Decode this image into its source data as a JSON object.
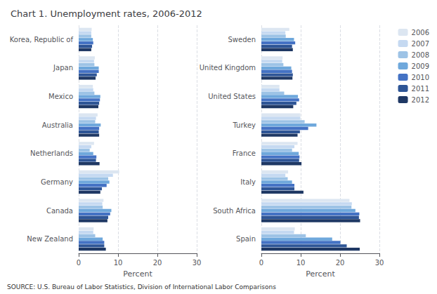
{
  "chart_data": [
    {
      "type": "bar",
      "orientation": "horizontal",
      "title": "Chart 1. Unemployment rates, 2006-2012",
      "annotations": [
        "SOURCE: U.S. Bureau of Labor Statistics, Division of International Labor Comparisons"
      ],
      "categories": [
        "Korea, Republic of",
        "Japan",
        "Mexico",
        "Australia",
        "Netherlands",
        "Germany",
        "Canada",
        "New Zealand"
      ],
      "series": [
        {
          "name": "2006",
          "color": "#dce6f1",
          "values": [
            3.3,
            4.1,
            3.6,
            4.8,
            3.9,
            10.3,
            6.3,
            3.8
          ]
        },
        {
          "name": "2007",
          "color": "#c5d9f1",
          "values": [
            3.2,
            3.9,
            3.7,
            4.4,
            3.2,
            8.7,
            6.0,
            3.7
          ]
        },
        {
          "name": "2008",
          "color": "#9dc3e6",
          "values": [
            3.2,
            4.0,
            4.0,
            4.2,
            2.8,
            7.5,
            6.1,
            4.2
          ]
        },
        {
          "name": "2009",
          "color": "#6fa8dc",
          "values": [
            3.6,
            5.1,
            5.5,
            5.6,
            3.7,
            7.8,
            8.3,
            6.1
          ]
        },
        {
          "name": "2010",
          "color": "#4472c4",
          "values": [
            3.7,
            5.1,
            5.4,
            5.2,
            4.5,
            7.1,
            8.0,
            6.5
          ]
        },
        {
          "name": "2011",
          "color": "#2e5596",
          "values": [
            3.4,
            4.6,
            5.2,
            5.1,
            4.4,
            5.9,
            7.5,
            6.5
          ]
        },
        {
          "name": "2012",
          "color": "#1f3864",
          "values": [
            3.2,
            4.3,
            5.0,
            5.2,
            5.3,
            5.5,
            7.3,
            6.9
          ]
        }
      ],
      "xlabel": "Percent",
      "xlim": [
        0,
        30
      ],
      "xticks": [
        0,
        10,
        20,
        30
      ],
      "grid": true
    },
    {
      "type": "bar",
      "orientation": "horizontal",
      "categories": [
        "Sweden",
        "United Kingdom",
        "United States",
        "Turkey",
        "France",
        "Italy",
        "South Africa",
        "Spain"
      ],
      "series": [
        {
          "name": "2006",
          "color": "#dce6f1",
          "values": [
            7.1,
            5.4,
            4.6,
            9.9,
            9.2,
            6.8,
            22.4,
            8.5
          ]
        },
        {
          "name": "2007",
          "color": "#c5d9f1",
          "values": [
            6.1,
            5.3,
            4.6,
            9.9,
            8.4,
            6.1,
            23.0,
            8.3
          ]
        },
        {
          "name": "2008",
          "color": "#9dc3e6",
          "values": [
            6.2,
            5.6,
            5.8,
            11.0,
            7.8,
            6.7,
            22.9,
            11.3
          ]
        },
        {
          "name": "2009",
          "color": "#6fa8dc",
          "values": [
            8.3,
            7.6,
            9.3,
            14.0,
            9.5,
            7.8,
            23.9,
            18.0
          ]
        },
        {
          "name": "2010",
          "color": "#4472c4",
          "values": [
            8.6,
            7.8,
            9.6,
            11.9,
            9.7,
            8.4,
            24.9,
            20.1
          ]
        },
        {
          "name": "2011",
          "color": "#2e5596",
          "values": [
            7.8,
            8.0,
            8.9,
            9.8,
            9.6,
            8.4,
            24.8,
            21.7
          ]
        },
        {
          "name": "2012",
          "color": "#1f3864",
          "values": [
            8.0,
            7.9,
            8.1,
            9.2,
            10.2,
            10.7,
            25.1,
            25.0
          ]
        }
      ],
      "xlabel": "Percent",
      "xlim": [
        0,
        30
      ],
      "xticks": [
        0,
        10,
        20,
        30
      ],
      "grid": true,
      "legend": "right"
    }
  ]
}
